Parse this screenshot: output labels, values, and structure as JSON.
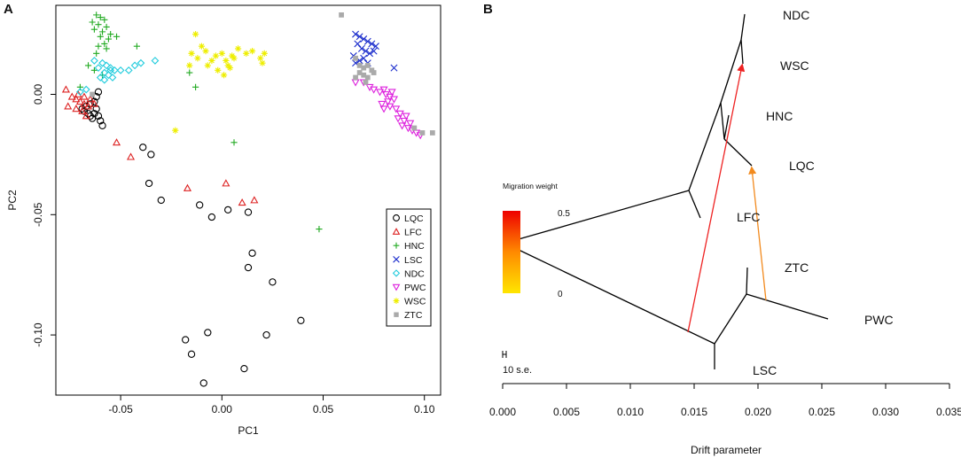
{
  "panel_labels": [
    "A",
    "B"
  ],
  "chart_data": [
    {
      "type": "scatter",
      "title": "",
      "xlabel": "PC1",
      "ylabel": "PC2",
      "xlim": [
        -0.082,
        0.108
      ],
      "ylim": [
        -0.125,
        0.037
      ],
      "xticks": [
        -0.05,
        0.0,
        0.05,
        0.1
      ],
      "xtick_labels": [
        "-0.05",
        "0.00",
        "0.05",
        "0.10"
      ],
      "yticks": [
        -0.1,
        -0.05,
        0.0
      ],
      "ytick_labels": [
        "-0.10",
        "-0.05",
        "0.00"
      ],
      "legend_position": "bottom-right",
      "series": [
        {
          "name": "LQC",
          "marker": "circle",
          "color": "#000000",
          "points": [
            [
              -0.069,
              -0.006
            ],
            [
              -0.068,
              -0.007
            ],
            [
              -0.066,
              -0.008
            ],
            [
              -0.065,
              -0.009
            ],
            [
              -0.064,
              -0.01
            ],
            [
              -0.063,
              -0.008
            ],
            [
              -0.062,
              -0.006
            ],
            [
              -0.061,
              -0.009
            ],
            [
              -0.06,
              -0.011
            ],
            [
              -0.059,
              -0.013
            ],
            [
              -0.065,
              -0.004
            ],
            [
              -0.063,
              -0.003
            ],
            [
              -0.061,
              0.001
            ],
            [
              -0.062,
              -0.001
            ],
            [
              -0.067,
              -0.005
            ],
            [
              -0.039,
              -0.022
            ],
            [
              -0.035,
              -0.025
            ],
            [
              -0.036,
              -0.037
            ],
            [
              -0.03,
              -0.044
            ],
            [
              -0.011,
              -0.046
            ],
            [
              -0.005,
              -0.051
            ],
            [
              0.003,
              -0.048
            ],
            [
              0.013,
              -0.049
            ],
            [
              0.015,
              -0.066
            ],
            [
              0.013,
              -0.072
            ],
            [
              0.025,
              -0.078
            ],
            [
              0.039,
              -0.094
            ],
            [
              0.022,
              -0.1
            ],
            [
              -0.007,
              -0.099
            ],
            [
              -0.018,
              -0.102
            ],
            [
              -0.015,
              -0.108
            ],
            [
              0.011,
              -0.114
            ],
            [
              -0.009,
              -0.12
            ]
          ]
        },
        {
          "name": "LFC",
          "marker": "triangle",
          "color": "#dd2222",
          "points": [
            [
              -0.077,
              0.002
            ],
            [
              -0.074,
              -0.001
            ],
            [
              -0.072,
              -0.002
            ],
            [
              -0.07,
              -0.003
            ],
            [
              -0.068,
              -0.004
            ],
            [
              -0.066,
              -0.005
            ],
            [
              -0.076,
              -0.005
            ],
            [
              -0.072,
              -0.006
            ],
            [
              -0.069,
              -0.007
            ],
            [
              -0.067,
              -0.009
            ],
            [
              -0.065,
              -0.002
            ],
            [
              -0.063,
              -0.004
            ],
            [
              -0.071,
              0.0
            ],
            [
              -0.068,
              -0.001
            ],
            [
              -0.052,
              -0.02
            ],
            [
              -0.045,
              -0.026
            ],
            [
              -0.017,
              -0.039
            ],
            [
              0.002,
              -0.037
            ],
            [
              0.01,
              -0.045
            ],
            [
              0.016,
              -0.044
            ]
          ]
        },
        {
          "name": "HNC",
          "marker": "plus",
          "color": "#22aa22",
          "points": [
            [
              -0.062,
              0.033
            ],
            [
              -0.06,
              0.032
            ],
            [
              -0.058,
              0.031
            ],
            [
              -0.064,
              0.03
            ],
            [
              -0.061,
              0.029
            ],
            [
              -0.057,
              0.028
            ],
            [
              -0.063,
              0.027
            ],
            [
              -0.059,
              0.026
            ],
            [
              -0.055,
              0.025
            ],
            [
              -0.06,
              0.024
            ],
            [
              -0.056,
              0.023
            ],
            [
              -0.052,
              0.024
            ],
            [
              -0.058,
              0.021
            ],
            [
              -0.061,
              0.02
            ],
            [
              -0.057,
              0.019
            ],
            [
              -0.062,
              0.017
            ],
            [
              -0.066,
              0.012
            ],
            [
              -0.063,
              0.01
            ],
            [
              -0.059,
              0.008
            ],
            [
              -0.042,
              0.02
            ],
            [
              -0.016,
              0.009
            ],
            [
              -0.013,
              0.003
            ],
            [
              0.006,
              -0.02
            ],
            [
              0.048,
              -0.056
            ],
            [
              -0.07,
              0.003
            ]
          ]
        },
        {
          "name": "LSC",
          "marker": "x",
          "color": "#1a2ccc",
          "points": [
            [
              0.066,
              0.025
            ],
            [
              0.068,
              0.024
            ],
            [
              0.07,
              0.023
            ],
            [
              0.072,
              0.022
            ],
            [
              0.074,
              0.021
            ],
            [
              0.076,
              0.02
            ],
            [
              0.067,
              0.021
            ],
            [
              0.069,
              0.019
            ],
            [
              0.071,
              0.018
            ],
            [
              0.073,
              0.017
            ],
            [
              0.075,
              0.018
            ],
            [
              0.065,
              0.016
            ],
            [
              0.068,
              0.014
            ],
            [
              0.07,
              0.015
            ],
            [
              0.072,
              0.013
            ],
            [
              0.066,
              0.013
            ],
            [
              0.085,
              0.011
            ]
          ]
        },
        {
          "name": "NDC",
          "marker": "diamond",
          "color": "#22ccdd",
          "points": [
            [
              -0.07,
              0.001
            ],
            [
              -0.067,
              0.002
            ],
            [
              -0.059,
              0.013
            ],
            [
              -0.057,
              0.012
            ],
            [
              -0.055,
              0.011
            ],
            [
              -0.053,
              0.01
            ],
            [
              -0.058,
              0.009
            ],
            [
              -0.056,
              0.008
            ],
            [
              -0.054,
              0.007
            ],
            [
              -0.06,
              0.007
            ],
            [
              -0.058,
              0.006
            ],
            [
              -0.063,
              0.014
            ],
            [
              -0.061,
              0.011
            ],
            [
              -0.055,
              0.01
            ],
            [
              -0.05,
              0.01
            ],
            [
              -0.046,
              0.01
            ],
            [
              -0.043,
              0.012
            ],
            [
              -0.04,
              0.013
            ],
            [
              -0.033,
              0.014
            ]
          ]
        },
        {
          "name": "PWC",
          "marker": "invtriangle",
          "color": "#dd22dd",
          "points": [
            [
              0.066,
              0.005
            ],
            [
              0.07,
              0.005
            ],
            [
              0.073,
              0.003
            ],
            [
              0.075,
              0.002
            ],
            [
              0.078,
              0.001
            ],
            [
              0.08,
              0.002
            ],
            [
              0.081,
              0.0
            ],
            [
              0.083,
              -0.001
            ],
            [
              0.085,
              -0.002
            ],
            [
              0.084,
              0.001
            ],
            [
              0.082,
              -0.003
            ],
            [
              0.079,
              -0.004
            ],
            [
              0.08,
              -0.006
            ],
            [
              0.083,
              -0.005
            ],
            [
              0.086,
              -0.006
            ],
            [
              0.088,
              -0.008
            ],
            [
              0.087,
              -0.01
            ],
            [
              0.09,
              -0.011
            ],
            [
              0.089,
              -0.013
            ],
            [
              0.092,
              -0.014
            ],
            [
              0.094,
              -0.015
            ],
            [
              0.096,
              -0.016
            ],
            [
              0.098,
              -0.017
            ],
            [
              0.093,
              -0.012
            ],
            [
              0.091,
              -0.009
            ]
          ]
        },
        {
          "name": "WSC",
          "marker": "asterisk",
          "color": "#eeee00",
          "points": [
            [
              -0.013,
              0.025
            ],
            [
              -0.01,
              0.02
            ],
            [
              -0.015,
              0.017
            ],
            [
              -0.012,
              0.015
            ],
            [
              -0.008,
              0.018
            ],
            [
              -0.005,
              0.014
            ],
            [
              -0.007,
              0.012
            ],
            [
              -0.003,
              0.016
            ],
            [
              0.0,
              0.017
            ],
            [
              0.002,
              0.014
            ],
            [
              0.003,
              0.012
            ],
            [
              0.005,
              0.016
            ],
            [
              0.006,
              0.015
            ],
            [
              0.004,
              0.011
            ],
            [
              -0.002,
              0.01
            ],
            [
              0.008,
              0.019
            ],
            [
              0.012,
              0.017
            ],
            [
              0.015,
              0.018
            ],
            [
              0.019,
              0.015
            ],
            [
              0.02,
              0.013
            ],
            [
              0.021,
              0.017
            ],
            [
              0.001,
              0.008
            ],
            [
              -0.016,
              0.012
            ],
            [
              -0.023,
              -0.015
            ]
          ]
        },
        {
          "name": "ZTC",
          "marker": "square",
          "color": "#aaaaaa",
          "points": [
            [
              0.059,
              0.033
            ],
            [
              0.066,
              0.015
            ],
            [
              0.068,
              0.012
            ],
            [
              0.07,
              0.011
            ],
            [
              0.072,
              0.012
            ],
            [
              0.074,
              0.01
            ],
            [
              0.07,
              0.008
            ],
            [
              0.072,
              0.007
            ],
            [
              0.075,
              0.009
            ],
            [
              0.068,
              0.009
            ],
            [
              0.071,
              0.005
            ],
            [
              0.066,
              0.007
            ],
            [
              0.099,
              -0.016
            ],
            [
              0.104,
              -0.016
            ],
            [
              0.095,
              -0.014
            ],
            [
              -0.064,
              0.0
            ]
          ]
        }
      ]
    },
    {
      "type": "tree",
      "title": "",
      "xlabel": "Drift parameter",
      "ylabel": "",
      "xlim": [
        0.0,
        0.035
      ],
      "xticks": [
        0.0,
        0.005,
        0.01,
        0.015,
        0.02,
        0.025,
        0.03,
        0.035
      ],
      "xtick_labels": [
        "0.000",
        "0.005",
        "0.010",
        "0.015",
        "0.020",
        "0.025",
        "0.030",
        "0.035"
      ],
      "taxa": [
        "NDC",
        "WSC",
        "HNC",
        "LQC",
        "LFC",
        "ZTC",
        "PWC",
        "LSC"
      ],
      "migration_legend": {
        "title": "Migration weight",
        "high_label": "0.5",
        "low_label": "0",
        "colors": [
          "#ff0000",
          "#ff9900",
          "#ffee00"
        ]
      },
      "scale_label": "10 s.e.",
      "migration_edges": [
        {
          "from": "LSC branch",
          "to": "WSC branch",
          "weight": 0.5,
          "color": "#ee2222"
        },
        {
          "from": "ZTC branch",
          "to": "LQC branch",
          "weight": 0.3,
          "color": "#f28a1e"
        }
      ]
    }
  ]
}
